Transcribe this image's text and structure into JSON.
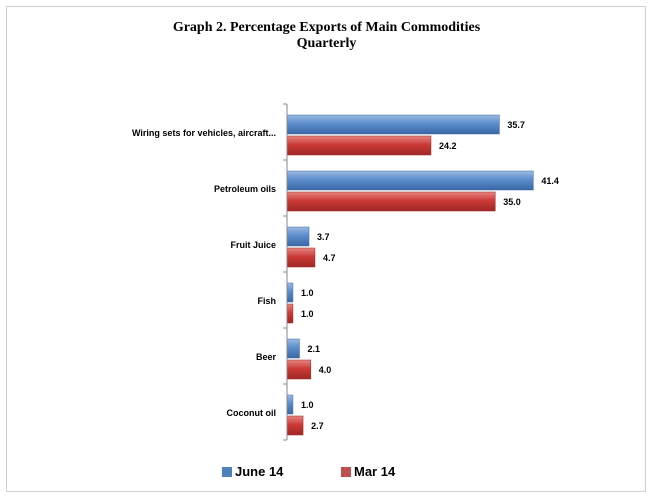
{
  "chart_data": {
    "type": "bar",
    "orientation": "horizontal",
    "title": "Graph 2.     Percentage  Exports of Main Commodities",
    "subtitle": "Quarterly",
    "categories": [
      "Wiring sets for vehicles, aircraft...",
      "Petroleum oils",
      "Fruit Juice",
      "Fish",
      "Beer",
      "Coconut oil"
    ],
    "series": [
      {
        "name": "June 14",
        "values": [
          35.7,
          41.4,
          3.7,
          1.0,
          2.1,
          1.0
        ],
        "labels": [
          "35.7",
          "41.4",
          "3.7",
          "1.0",
          "2.1",
          "1.0"
        ],
        "color": "#4f81bd"
      },
      {
        "name": "Mar 14",
        "values": [
          24.2,
          35.0,
          4.7,
          1.0,
          4.0,
          2.7
        ],
        "labels": [
          "24.2",
          "35.0",
          "4.7",
          "1.0",
          "4.0",
          "2.7"
        ],
        "color": "#c0504d"
      }
    ],
    "xlim": [
      0,
      45
    ],
    "grid": false,
    "legend_position": "bottom"
  }
}
